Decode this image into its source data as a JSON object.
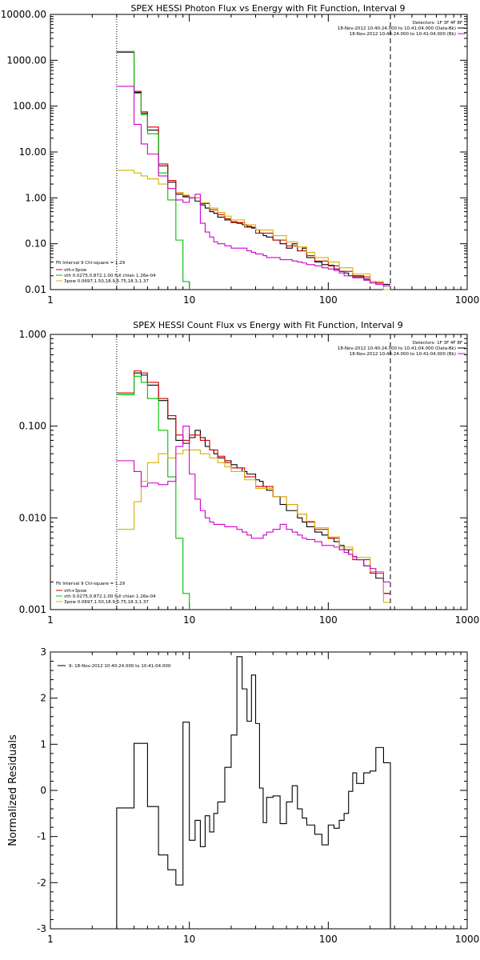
{
  "chart_data": [
    {
      "type": "line",
      "title": "SPEX HESSI Photon Flux vs Energy with Fit Function, Interval 9",
      "xscale": "log",
      "yscale": "log",
      "xlim": [
        1,
        1000
      ],
      "ylim": [
        0.01,
        10000
      ],
      "xticks": [
        "1",
        "10",
        "100",
        "1000"
      ],
      "yticks": [
        "0.01",
        "0.10",
        "1.00",
        "10.00",
        "100.00",
        "1000.00",
        "10000.00"
      ],
      "vlines": [
        3,
        280
      ],
      "legend_right": [
        "Detectors: 1F 3F 4F 8F",
        "18-Nov-2012 10:40:24.000 to 10:41:04.000 (Data-Bk)",
        "18-Nov-2012 10:40:24.000 to 10:41:04.000 (Bk)"
      ],
      "legend_left": [
        "Fit Interval 9   Chi-square = 1.29",
        "vth+3pow",
        "vth 0.0275,0.872,1.00  full chian 1.26e-04",
        "3pow 0.0697,1.50,18.9,5.75,18.3,1.37"
      ],
      "series": [
        {
          "name": "Data-Bk",
          "color": "#000000",
          "edges": [
            3,
            3.5,
            4,
            4.5,
            5,
            6,
            7,
            8,
            9,
            10,
            11,
            12,
            13,
            14,
            15,
            16,
            18,
            20,
            22,
            24,
            26,
            28,
            30,
            32,
            34,
            36,
            40,
            45,
            50,
            55,
            60,
            65,
            70,
            80,
            90,
            100,
            110,
            120,
            130,
            140,
            150,
            160,
            180,
            200,
            220,
            250,
            280
          ],
          "values": [
            1500,
            1500,
            200,
            70,
            30,
            5,
            2.2,
            1.2,
            1.05,
            1.0,
            0.85,
            0.7,
            0.6,
            0.5,
            0.46,
            0.38,
            0.33,
            0.3,
            0.28,
            0.26,
            0.24,
            0.22,
            0.2,
            0.17,
            0.15,
            0.14,
            0.12,
            0.1,
            0.08,
            0.1,
            0.07,
            0.08,
            0.05,
            0.04,
            0.035,
            0.034,
            0.028,
            0.025,
            0.023,
            0.02,
            0.02,
            0.02,
            0.017,
            0.015,
            0.014,
            0.013
          ]
        },
        {
          "name": "vth+3pow",
          "color": "#d00000",
          "edges": [
            3,
            3.5,
            4,
            4.5,
            5,
            6,
            7,
            8,
            9,
            10,
            12,
            14,
            16,
            18,
            20,
            25,
            30,
            40,
            50,
            60,
            70,
            80,
            100,
            120,
            150,
            200,
            250,
            280
          ],
          "values": [
            1550,
            1550,
            210,
            75,
            35,
            5.5,
            2.4,
            1.3,
            1.1,
            1.0,
            0.75,
            0.55,
            0.43,
            0.35,
            0.29,
            0.23,
            0.17,
            0.12,
            0.09,
            0.07,
            0.055,
            0.042,
            0.033,
            0.025,
            0.019,
            0.014,
            0.012
          ]
        },
        {
          "name": "vth",
          "color": "#00c000",
          "edges": [
            3,
            3.5,
            4,
            4.5,
            5,
            6,
            7,
            8,
            9,
            10
          ],
          "values": [
            1550,
            1550,
            190,
            65,
            25,
            3.5,
            0.9,
            0.12,
            0.015,
            0.008
          ]
        },
        {
          "name": "3pow",
          "color": "#d8b000",
          "edges": [
            3,
            3.5,
            4,
            4.5,
            5,
            6,
            7,
            8,
            9,
            10,
            12,
            14,
            16,
            18,
            20,
            25,
            30,
            40,
            50,
            60,
            70,
            80,
            100,
            120,
            150,
            200,
            250,
            280
          ],
          "values": [
            4,
            4,
            3.5,
            3,
            2.6,
            2.0,
            1.6,
            1.3,
            1.15,
            1.0,
            0.78,
            0.6,
            0.48,
            0.4,
            0.33,
            0.26,
            0.2,
            0.15,
            0.11,
            0.085,
            0.065,
            0.05,
            0.04,
            0.03,
            0.022,
            0.015,
            0.01
          ]
        },
        {
          "name": "Bk",
          "color": "#d000d0",
          "edges": [
            3,
            3.5,
            4,
            4.5,
            5,
            6,
            7,
            8,
            9,
            10,
            11,
            12,
            13,
            14,
            15,
            16,
            18,
            20,
            22,
            24,
            26,
            28,
            30,
            32,
            34,
            36,
            40,
            45,
            50,
            55,
            60,
            65,
            70,
            80,
            90,
            100,
            110,
            120,
            130,
            140,
            150,
            160,
            180,
            200,
            220,
            250,
            280
          ],
          "values": [
            270,
            270,
            40,
            15,
            9,
            3,
            1.6,
            0.9,
            0.8,
            1.0,
            1.2,
            0.28,
            0.18,
            0.14,
            0.11,
            0.1,
            0.09,
            0.08,
            0.08,
            0.08,
            0.07,
            0.065,
            0.06,
            0.06,
            0.055,
            0.05,
            0.05,
            0.045,
            0.045,
            0.042,
            0.04,
            0.038,
            0.035,
            0.033,
            0.03,
            0.028,
            0.026,
            0.023,
            0.02,
            0.02,
            0.018,
            0.018,
            0.016,
            0.014,
            0.013,
            0.012
          ]
        }
      ]
    },
    {
      "type": "line",
      "title": "SPEX HESSI Count Flux vs Energy with Fit Function, Interval 9",
      "xscale": "log",
      "yscale": "log",
      "xlim": [
        1,
        1000
      ],
      "ylim": [
        0.001,
        1
      ],
      "xticks": [
        "1",
        "10",
        "100",
        "1000"
      ],
      "yticks": [
        "0.001",
        "0.010",
        "0.100",
        "1.000"
      ],
      "vlines": [
        3,
        280
      ],
      "legend_right": [
        "Detectors: 1F 3F 4F 8F",
        "18-Nov-2012 10:40:24.000 to 10:41:04.000 (Data-Bk)",
        "18-Nov-2012 10:40:24.000 to 10:41:04.000 (Bk)"
      ],
      "legend_left": [
        "Fit Interval 9   Chi-square = 1.29",
        "vth+3pow",
        "vth 0.0275,0.872,1.00  full chian 1.26e-04",
        "3pow 0.0697,1.50,18.9,5.75,18.3,1.37"
      ],
      "series": [
        {
          "name": "Data-Bk",
          "color": "#000000",
          "edges": [
            3,
            3.5,
            4,
            4.5,
            5,
            6,
            7,
            8,
            9,
            10,
            11,
            12,
            13,
            14,
            15,
            16,
            18,
            20,
            22,
            24,
            26,
            28,
            30,
            32,
            34,
            36,
            40,
            45,
            50,
            55,
            60,
            65,
            70,
            80,
            90,
            100,
            110,
            120,
            130,
            140,
            150,
            160,
            180,
            200,
            220,
            250,
            280
          ],
          "values": [
            0.22,
            0.22,
            0.38,
            0.36,
            0.28,
            0.19,
            0.12,
            0.07,
            0.065,
            0.075,
            0.09,
            0.075,
            0.06,
            0.055,
            0.05,
            0.045,
            0.042,
            0.038,
            0.035,
            0.032,
            0.03,
            0.03,
            0.026,
            0.025,
            0.022,
            0.02,
            0.017,
            0.014,
            0.012,
            0.012,
            0.01,
            0.009,
            0.008,
            0.007,
            0.0065,
            0.006,
            0.0055,
            0.005,
            0.0045,
            0.004,
            0.0038,
            0.0035,
            0.003,
            0.0025,
            0.0022,
            0.0015
          ]
        },
        {
          "name": "vth+3pow",
          "color": "#d00000",
          "edges": [
            3,
            3.5,
            4,
            4.5,
            5,
            6,
            7,
            8,
            9,
            10,
            12,
            14,
            16,
            18,
            20,
            25,
            30,
            40,
            50,
            60,
            70,
            80,
            100,
            120,
            150,
            200,
            250,
            280
          ],
          "values": [
            0.23,
            0.23,
            0.4,
            0.38,
            0.3,
            0.2,
            0.13,
            0.08,
            0.07,
            0.08,
            0.07,
            0.055,
            0.047,
            0.04,
            0.035,
            0.028,
            0.022,
            0.017,
            0.014,
            0.011,
            0.009,
            0.0075,
            0.006,
            0.0045,
            0.0035,
            0.0025,
            0.0015
          ]
        },
        {
          "name": "vth",
          "color": "#00c000",
          "edges": [
            3,
            3.5,
            4,
            4.5,
            5,
            6,
            7,
            8,
            9,
            10
          ],
          "values": [
            0.22,
            0.22,
            0.35,
            0.3,
            0.2,
            0.09,
            0.028,
            0.006,
            0.0015,
            0.0008
          ]
        },
        {
          "name": "3pow",
          "color": "#d8b000",
          "edges": [
            3,
            3.5,
            4,
            4.5,
            5,
            6,
            7,
            8,
            9,
            10,
            12,
            14,
            16,
            18,
            20,
            25,
            30,
            40,
            50,
            60,
            70,
            80,
            100,
            120,
            150,
            200,
            250,
            280
          ],
          "values": [
            0.0075,
            0.0075,
            0.015,
            0.025,
            0.04,
            0.05,
            0.045,
            0.05,
            0.055,
            0.055,
            0.05,
            0.045,
            0.04,
            0.036,
            0.032,
            0.026,
            0.021,
            0.017,
            0.014,
            0.011,
            0.0092,
            0.0078,
            0.0062,
            0.0048,
            0.0037,
            0.0026,
            0.0012
          ]
        },
        {
          "name": "Bk",
          "color": "#d000d0",
          "edges": [
            3,
            3.5,
            4,
            4.5,
            5,
            6,
            7,
            8,
            9,
            10,
            11,
            12,
            13,
            14,
            15,
            16,
            18,
            20,
            22,
            24,
            26,
            28,
            30,
            32,
            34,
            36,
            40,
            45,
            50,
            55,
            60,
            65,
            70,
            80,
            90,
            100,
            110,
            120,
            130,
            140,
            150,
            160,
            180,
            200,
            220,
            250,
            280
          ],
          "values": [
            0.042,
            0.042,
            0.032,
            0.022,
            0.024,
            0.023,
            0.025,
            0.06,
            0.1,
            0.03,
            0.016,
            0.012,
            0.01,
            0.009,
            0.0085,
            0.0085,
            0.008,
            0.008,
            0.0075,
            0.007,
            0.0065,
            0.006,
            0.006,
            0.006,
            0.0065,
            0.007,
            0.0075,
            0.0085,
            0.0075,
            0.007,
            0.0065,
            0.006,
            0.0058,
            0.0055,
            0.005,
            0.005,
            0.0048,
            0.0045,
            0.0042,
            0.004,
            0.0038,
            0.0035,
            0.003,
            0.0028,
            0.0025,
            0.002
          ]
        }
      ]
    },
    {
      "type": "line",
      "title": "",
      "ylabel": "Normalized Residuals",
      "xscale": "log",
      "xlim": [
        1,
        1000
      ],
      "ylim": [
        -3,
        3
      ],
      "xticks": [
        "1",
        "10",
        "100",
        "1000"
      ],
      "yticks": [
        "-3",
        "-2",
        "-1",
        "0",
        "1",
        "2",
        "3"
      ],
      "legend_left": [
        "9: 18-Nov-2012 10:40:24.000 to 10:41:04.000"
      ],
      "series": [
        {
          "name": "9: 18-Nov-2012 10:40:24.000 to 10:41:04.000",
          "color": "#000000",
          "edges": [
            3,
            4,
            5,
            6,
            7,
            8,
            9,
            10,
            11,
            12,
            13,
            14,
            15,
            16,
            18,
            20,
            22,
            24,
            26,
            28,
            30,
            32,
            34,
            36,
            40,
            45,
            50,
            55,
            60,
            65,
            70,
            80,
            90,
            100,
            110,
            120,
            130,
            140,
            150,
            160,
            180,
            200,
            220,
            250,
            280
          ],
          "values": [
            -0.38,
            1.02,
            -0.35,
            -1.4,
            -1.72,
            -2.05,
            1.48,
            -1.08,
            -0.65,
            -1.22,
            -0.55,
            -0.9,
            -0.5,
            -0.25,
            0.5,
            1.2,
            2.9,
            2.2,
            1.5,
            2.5,
            1.45,
            0.05,
            -0.7,
            -0.15,
            -0.12,
            -0.72,
            -0.25,
            0.1,
            -0.4,
            -0.6,
            -0.75,
            -0.95,
            -1.18,
            -0.75,
            -0.82,
            -0.65,
            -0.5,
            -0.02,
            0.38,
            0.15,
            0.38,
            0.42,
            0.93,
            0.6
          ]
        }
      ]
    }
  ]
}
